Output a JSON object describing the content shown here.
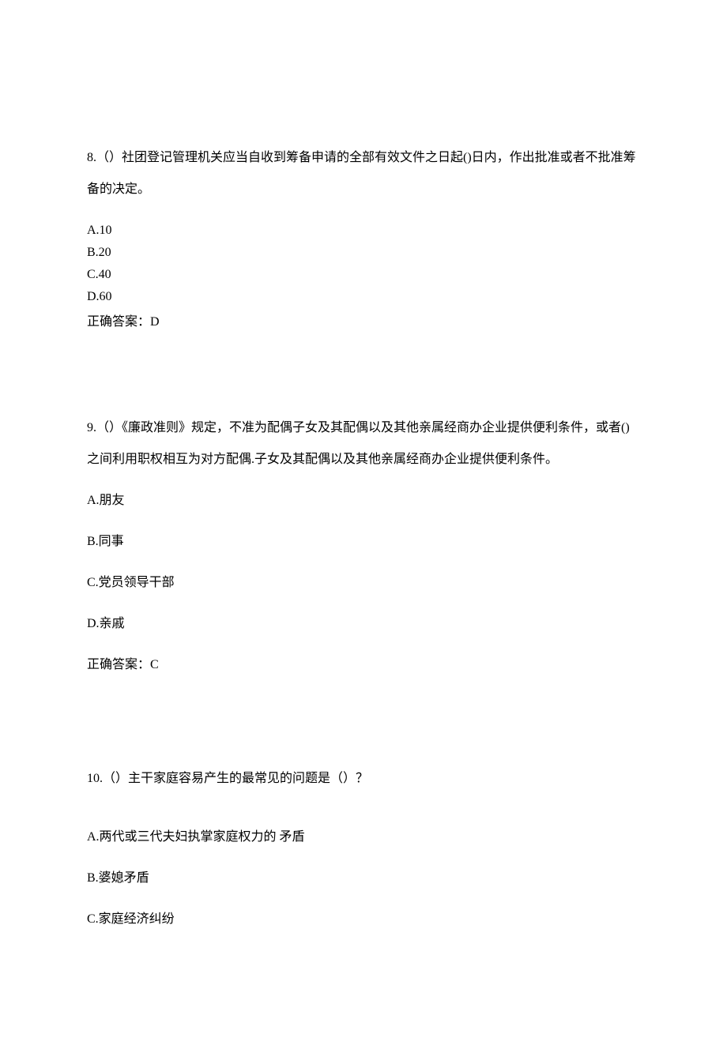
{
  "questions": [
    {
      "number": "8.",
      "prompt": "（）社团登记管理机关应当自收到筹备申请的全部有效文件之日起()日内，作出批准或者不批准筹备的决定。",
      "options": {
        "a": "A.10",
        "b": "B.20",
        "c": "C.40",
        "d": "D.60"
      },
      "answer_label": "正确答案：D"
    },
    {
      "number": "9.",
      "prompt": "（）《廉政准则》规定，不准为配偶子女及其配偶以及其他亲属经商办企业提供便利条件，或者()之间利用职权相互为对方配偶.子女及其配偶以及其他亲属经商办企业提供便利条件。",
      "options": {
        "a": "A.朋友",
        "b": "B.同事",
        "c": "C.党员领导干部",
        "d": "D.亲戚"
      },
      "answer_label": "正确答案：C"
    },
    {
      "number": "10.",
      "prompt": "（）主干家庭容易产生的最常见的问题是（）？",
      "options": {
        "a": "A.两代或三代夫妇执掌家庭权力的 矛盾",
        "b": "B.婆媳矛盾",
        "c": "C.家庭经济纠纷"
      },
      "answer_label": ""
    }
  ]
}
